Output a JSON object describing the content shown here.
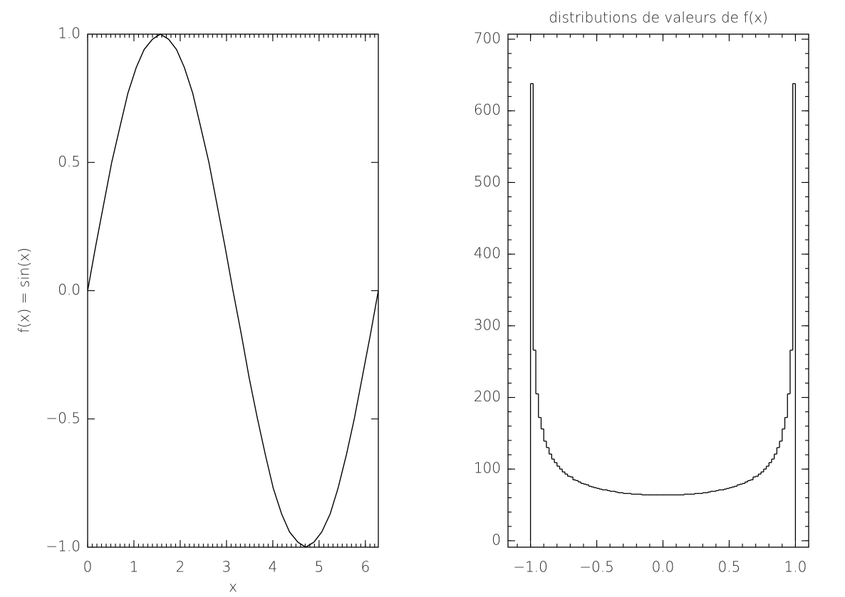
{
  "chart_data": [
    {
      "type": "line",
      "xlabel": "x",
      "ylabel": "f(x) = sin(x)",
      "color": "#000000",
      "x": [
        0,
        0.17,
        0.35,
        0.52,
        0.7,
        0.87,
        1.05,
        1.22,
        1.4,
        1.57,
        1.75,
        1.92,
        2.09,
        2.27,
        2.44,
        2.62,
        2.79,
        2.97,
        3.14,
        3.32,
        3.49,
        3.67,
        3.84,
        4.01,
        4.19,
        4.36,
        4.54,
        4.71,
        4.89,
        5.06,
        5.24,
        5.41,
        5.59,
        5.76,
        5.93,
        6.11,
        6.28
      ],
      "values": [
        0,
        0.17,
        0.34,
        0.5,
        0.64,
        0.77,
        0.87,
        0.94,
        0.98,
        1,
        0.98,
        0.94,
        0.87,
        0.77,
        0.64,
        0.5,
        0.34,
        0.17,
        0,
        -0.17,
        -0.34,
        -0.5,
        -0.64,
        -0.77,
        -0.87,
        -0.94,
        -0.98,
        -1,
        -0.98,
        -0.94,
        -0.87,
        -0.77,
        -0.64,
        -0.5,
        -0.34,
        -0.17,
        0
      ],
      "xlim": [
        0,
        6.28
      ],
      "xticks": [
        0,
        1,
        2,
        3,
        4,
        5,
        6
      ],
      "ylim": [
        -1,
        1
      ],
      "yticks": [
        {
          "value": -1,
          "label": "−1.0"
        },
        {
          "value": -0.5,
          "label": "−0.5"
        },
        {
          "value": 0,
          "label": "0.0"
        },
        {
          "value": 0.5,
          "label": "0.5"
        },
        {
          "value": 1,
          "label": "1.0"
        }
      ]
    },
    {
      "type": "histogram",
      "title": "distributions de valeurs de f(x)",
      "color": "#000000",
      "bins": [
        -1,
        -0.98,
        -0.96,
        -0.94,
        -0.92,
        -0.9,
        -0.88,
        -0.86,
        -0.84,
        -0.82,
        -0.8,
        -0.78,
        -0.76,
        -0.74,
        -0.72,
        -0.7,
        -0.68,
        -0.66,
        -0.64,
        -0.62,
        -0.6,
        -0.58,
        -0.56,
        -0.54,
        -0.52,
        -0.5,
        -0.48,
        -0.46,
        -0.44,
        -0.42,
        -0.4,
        -0.38,
        -0.36,
        -0.34,
        -0.32,
        -0.3,
        -0.28,
        -0.26,
        -0.24,
        -0.22,
        -0.2,
        -0.18,
        -0.16,
        -0.14,
        -0.12,
        -0.1,
        -0.08,
        -0.06,
        -0.04,
        -0.02,
        0,
        0.02,
        0.04,
        0.06,
        0.08,
        0.1,
        0.12,
        0.14,
        0.16,
        0.18,
        0.2,
        0.22,
        0.24,
        0.26,
        0.28,
        0.3,
        0.32,
        0.34,
        0.36,
        0.38,
        0.4,
        0.42,
        0.44,
        0.46,
        0.48,
        0.5,
        0.52,
        0.54,
        0.56,
        0.58,
        0.6,
        0.62,
        0.64,
        0.66,
        0.68,
        0.7,
        0.72,
        0.74,
        0.76,
        0.78,
        0.8,
        0.82,
        0.84,
        0.86,
        0.88,
        0.9,
        0.92,
        0.94,
        0.96,
        0.98,
        1
      ],
      "values": [
        638,
        266,
        205,
        172,
        156,
        139,
        130,
        121,
        114,
        109,
        104,
        100,
        96,
        93,
        90,
        89,
        85,
        84,
        82,
        80,
        79,
        78,
        76,
        75,
        74,
        73,
        72,
        71,
        71,
        70,
        69,
        69,
        68,
        67,
        67,
        66,
        66,
        66,
        65,
        65,
        65,
        65,
        64,
        64,
        64,
        64,
        64,
        64,
        64,
        64,
        64,
        64,
        64,
        64,
        64,
        64,
        64,
        64,
        65,
        65,
        65,
        65,
        66,
        66,
        66,
        67,
        67,
        68,
        69,
        69,
        70,
        71,
        71,
        72,
        73,
        74,
        75,
        76,
        78,
        79,
        80,
        82,
        84,
        85,
        89,
        90,
        93,
        96,
        100,
        104,
        109,
        114,
        121,
        130,
        139,
        156,
        172,
        205,
        266,
        638
      ],
      "xlim": [
        -1.17,
        1.1
      ],
      "xticks": [
        {
          "value": -1,
          "label": "−1.0"
        },
        {
          "value": -0.5,
          "label": "−0.5"
        },
        {
          "value": 0,
          "label": "0.0"
        },
        {
          "value": 0.5,
          "label": "0.5"
        },
        {
          "value": 1,
          "label": "1.0"
        }
      ],
      "ylim": [
        -9,
        707
      ],
      "yticks": [
        0,
        100,
        200,
        300,
        400,
        500,
        600,
        700
      ]
    }
  ]
}
